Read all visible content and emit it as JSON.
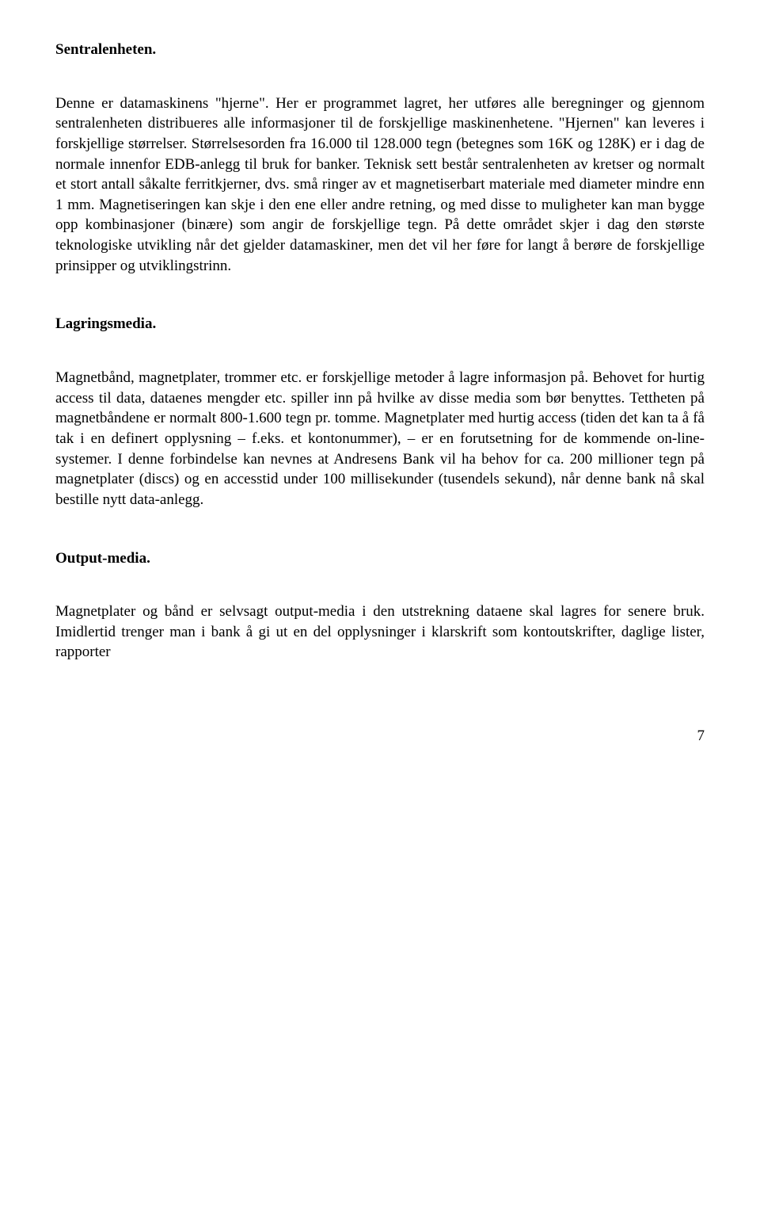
{
  "sections": {
    "s1": {
      "heading": "Sentralenheten.",
      "para": "Denne er datamaskinens \"hjerne\". Her er programmet lagret, her utføres alle beregninger og gjennom sentralenheten distribueres alle informasjoner til de forskjellige maskinenhetene. \"Hjernen\" kan leveres i forskjellige størrelser. Størrelsesorden fra 16.000 til 128.000 tegn (betegnes som 16K og 128K) er i dag de normale innenfor EDB-anlegg til bruk for banker. Teknisk sett består sentralenheten av kretser og normalt et stort antall såkalte ferritkjerner, dvs. små ringer av et magnetiserbart materiale med diameter mindre enn 1 mm. Magnetiseringen kan skje i den ene eller andre retning, og med disse to muligheter kan man bygge opp kombinasjoner (binære) som angir de forskjellige tegn. På dette området skjer i dag den største teknologiske utvikling når det gjelder datamaskiner, men det vil her føre for langt å berøre de forskjellige prinsipper og utviklingstrinn."
    },
    "s2": {
      "heading": "Lagringsmedia.",
      "para": "Magnetbånd, magnetplater, trommer etc. er forskjellige metoder å lagre informasjon på. Behovet for hurtig access til data, dataenes mengder etc. spiller inn på hvilke av disse media som bør benyttes. Tettheten på magnetbåndene er normalt 800-1.600 tegn pr. tomme. Magnetplater med hurtig access (tiden det kan ta å få tak i en definert opplysning – f.eks. et kontonummer), – er en forutsetning for de kommende on-line-systemer. I denne forbindelse kan nevnes at Andresens Bank vil ha behov for ca. 200 millioner tegn på magnetplater (discs) og en accesstid under 100 millisekunder (tusendels sekund), når denne bank nå skal bestille nytt data-anlegg."
    },
    "s3": {
      "heading": "Output-media.",
      "para": "Magnetplater og bånd er selvsagt output-media i den utstrekning dataene skal lagres for senere bruk. Imidlertid trenger man i bank å gi ut en del opplysninger i klarskrift som kontoutskrifter, daglige lister, rapporter"
    }
  },
  "page_number": "7"
}
